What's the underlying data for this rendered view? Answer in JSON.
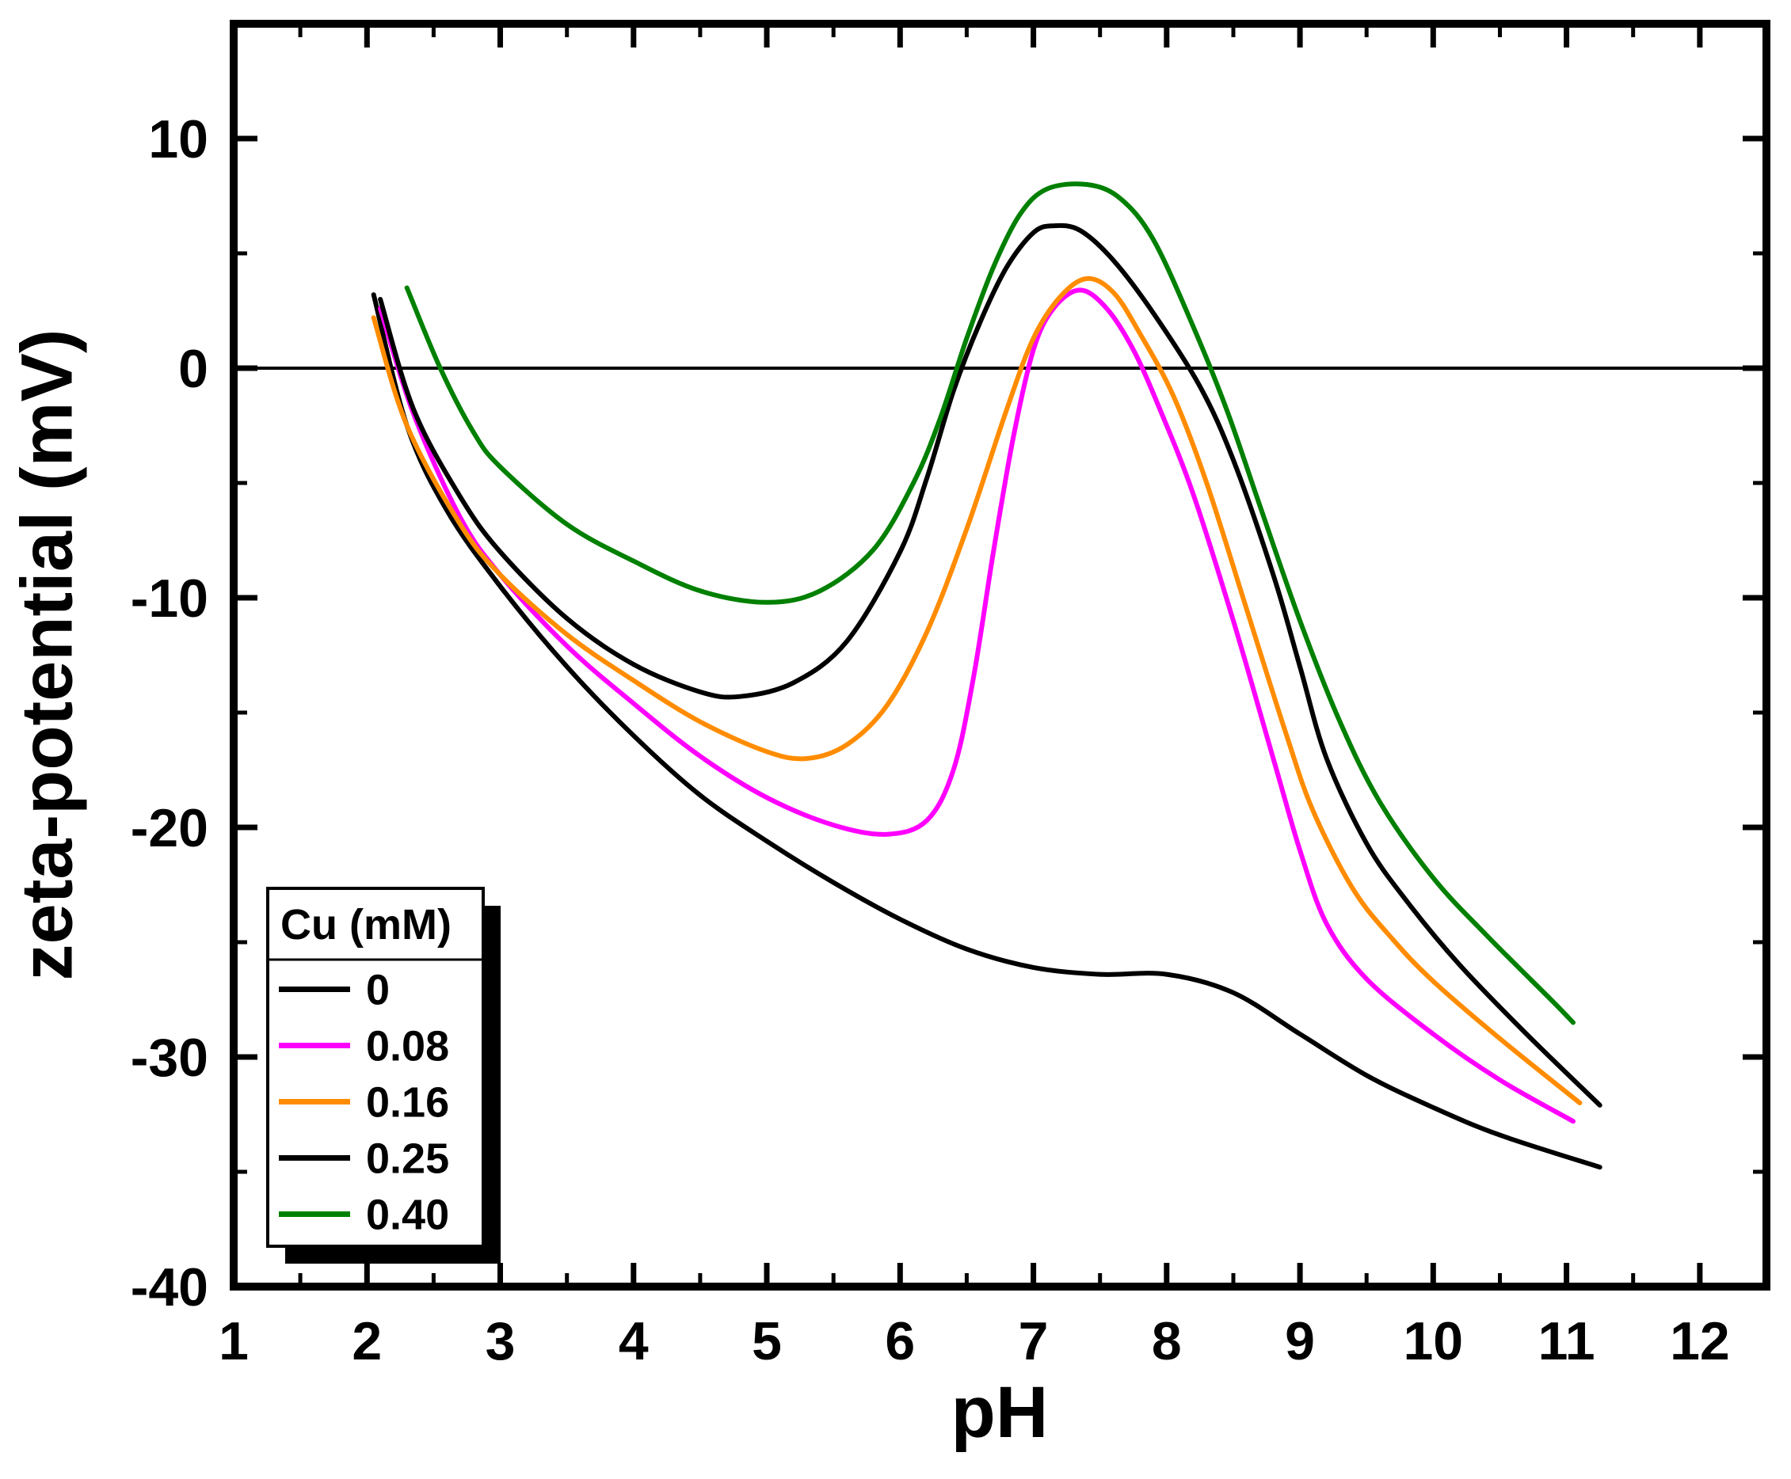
{
  "chart_data": {
    "type": "line",
    "title": "",
    "xlabel": "pH",
    "ylabel": "zeta-potential (mV)",
    "xlim": [
      1,
      12.5
    ],
    "ylim": [
      -40,
      15
    ],
    "x_major_ticks": [
      1,
      2,
      3,
      4,
      5,
      6,
      7,
      8,
      9,
      10,
      11,
      12
    ],
    "y_major_ticks": [
      10,
      0,
      -10,
      -20,
      -30,
      -40
    ],
    "x_minor_ticks": [
      1.5,
      2.5,
      3.5,
      4.5,
      5.5,
      6.5,
      7.5,
      8.5,
      9.5,
      10.5,
      11.5,
      12.5
    ],
    "y_minor_ticks": [
      15,
      5,
      -5,
      -15,
      -25,
      -35
    ],
    "grid": false,
    "zero_line": true,
    "legend": {
      "title": "Cu (mM)",
      "position": "lower-left"
    },
    "series": [
      {
        "name": "0",
        "color": "#000000",
        "points": [
          [
            2.05,
            3.2
          ],
          [
            2.3,
            -2.5
          ],
          [
            2.6,
            -6.2
          ],
          [
            3,
            -9.5
          ],
          [
            3.5,
            -13
          ],
          [
            4,
            -16
          ],
          [
            4.5,
            -18.6
          ],
          [
            5,
            -20.6
          ],
          [
            5.5,
            -22.4
          ],
          [
            6,
            -24
          ],
          [
            6.5,
            -25.3
          ],
          [
            7,
            -26.1
          ],
          [
            7.5,
            -26.4
          ],
          [
            8,
            -26.4
          ],
          [
            8.5,
            -27.2
          ],
          [
            9,
            -29
          ],
          [
            9.5,
            -30.8
          ],
          [
            10,
            -32.2
          ],
          [
            10.5,
            -33.4
          ],
          [
            11.25,
            -34.8
          ]
        ]
      },
      {
        "name": "0.08",
        "color": "#FF00FF",
        "points": [
          [
            2.1,
            2.6
          ],
          [
            2.35,
            -2
          ],
          [
            2.7,
            -6.5
          ],
          [
            3,
            -9
          ],
          [
            3.5,
            -12.1
          ],
          [
            4,
            -14.6
          ],
          [
            4.5,
            -16.9
          ],
          [
            5,
            -18.7
          ],
          [
            5.5,
            -19.9
          ],
          [
            5.9,
            -20.3
          ],
          [
            6.2,
            -19.7
          ],
          [
            6.4,
            -17.5
          ],
          [
            6.55,
            -13.5
          ],
          [
            6.7,
            -8
          ],
          [
            6.85,
            -3
          ],
          [
            7,
            0.8
          ],
          [
            7.15,
            2.6
          ],
          [
            7.35,
            3.4
          ],
          [
            7.55,
            2.6
          ],
          [
            7.75,
            0.8
          ],
          [
            7.95,
            -1.8
          ],
          [
            8.2,
            -5.5
          ],
          [
            8.5,
            -11
          ],
          [
            8.8,
            -17
          ],
          [
            9,
            -21
          ],
          [
            9.2,
            -24.2
          ],
          [
            9.5,
            -26.6
          ],
          [
            10,
            -29
          ],
          [
            10.5,
            -31
          ],
          [
            11.05,
            -32.8
          ]
        ]
      },
      {
        "name": "0.16",
        "color": "#FF8C00",
        "points": [
          [
            2.05,
            2.2
          ],
          [
            2.3,
            -2.5
          ],
          [
            2.7,
            -6.8
          ],
          [
            3,
            -9
          ],
          [
            3.5,
            -11.6
          ],
          [
            4,
            -13.6
          ],
          [
            4.5,
            -15.4
          ],
          [
            5,
            -16.7
          ],
          [
            5.3,
            -17
          ],
          [
            5.6,
            -16.4
          ],
          [
            5.9,
            -14.7
          ],
          [
            6.2,
            -11.5
          ],
          [
            6.5,
            -7
          ],
          [
            6.8,
            -1.8
          ],
          [
            7,
            1.3
          ],
          [
            7.2,
            3.1
          ],
          [
            7.4,
            3.9
          ],
          [
            7.6,
            3.3
          ],
          [
            7.8,
            1.5
          ],
          [
            8.05,
            -1.2
          ],
          [
            8.3,
            -5
          ],
          [
            8.6,
            -10.5
          ],
          [
            8.9,
            -16
          ],
          [
            9.1,
            -19.3
          ],
          [
            9.4,
            -22.7
          ],
          [
            9.7,
            -24.9
          ],
          [
            10,
            -26.7
          ],
          [
            10.5,
            -29.2
          ],
          [
            11.1,
            -32
          ]
        ]
      },
      {
        "name": "0.25",
        "color": "#000000",
        "points": [
          [
            2.1,
            3
          ],
          [
            2.35,
            -1.8
          ],
          [
            2.7,
            -5.6
          ],
          [
            3,
            -8
          ],
          [
            3.5,
            -10.9
          ],
          [
            4,
            -12.9
          ],
          [
            4.5,
            -14.1
          ],
          [
            4.8,
            -14.3
          ],
          [
            5.2,
            -13.7
          ],
          [
            5.6,
            -11.9
          ],
          [
            6,
            -8
          ],
          [
            6.2,
            -4.8
          ],
          [
            6.4,
            -1
          ],
          [
            6.6,
            2
          ],
          [
            6.8,
            4.4
          ],
          [
            7,
            5.9
          ],
          [
            7.15,
            6.2
          ],
          [
            7.35,
            6
          ],
          [
            7.6,
            4.7
          ],
          [
            7.9,
            2.4
          ],
          [
            8.25,
            -0.8
          ],
          [
            8.5,
            -4
          ],
          [
            8.8,
            -9
          ],
          [
            9,
            -13
          ],
          [
            9.2,
            -17
          ],
          [
            9.5,
            -20.7
          ],
          [
            9.8,
            -23.2
          ],
          [
            10.2,
            -26
          ],
          [
            10.7,
            -29
          ],
          [
            11.25,
            -32.1
          ]
        ]
      },
      {
        "name": "0.40",
        "color": "#008000",
        "points": [
          [
            2.3,
            3.5
          ],
          [
            2.55,
            0
          ],
          [
            2.8,
            -2.8
          ],
          [
            3,
            -4.3
          ],
          [
            3.5,
            -6.8
          ],
          [
            4,
            -8.4
          ],
          [
            4.5,
            -9.7
          ],
          [
            5,
            -10.2
          ],
          [
            5.4,
            -9.7
          ],
          [
            5.8,
            -7.9
          ],
          [
            6.1,
            -5
          ],
          [
            6.3,
            -2.2
          ],
          [
            6.5,
            1.3
          ],
          [
            6.7,
            4.4
          ],
          [
            6.9,
            6.7
          ],
          [
            7.1,
            7.8
          ],
          [
            7.4,
            8
          ],
          [
            7.65,
            7.4
          ],
          [
            7.9,
            5.6
          ],
          [
            8.2,
            1.8
          ],
          [
            8.45,
            -1.8
          ],
          [
            8.7,
            -6
          ],
          [
            9,
            -11
          ],
          [
            9.3,
            -15.4
          ],
          [
            9.6,
            -18.9
          ],
          [
            10,
            -22.2
          ],
          [
            10.4,
            -24.7
          ],
          [
            10.9,
            -27.6
          ],
          [
            11.05,
            -28.5
          ]
        ]
      }
    ]
  },
  "colors": {
    "axis": "#000000",
    "background": "#FFFFFF"
  }
}
